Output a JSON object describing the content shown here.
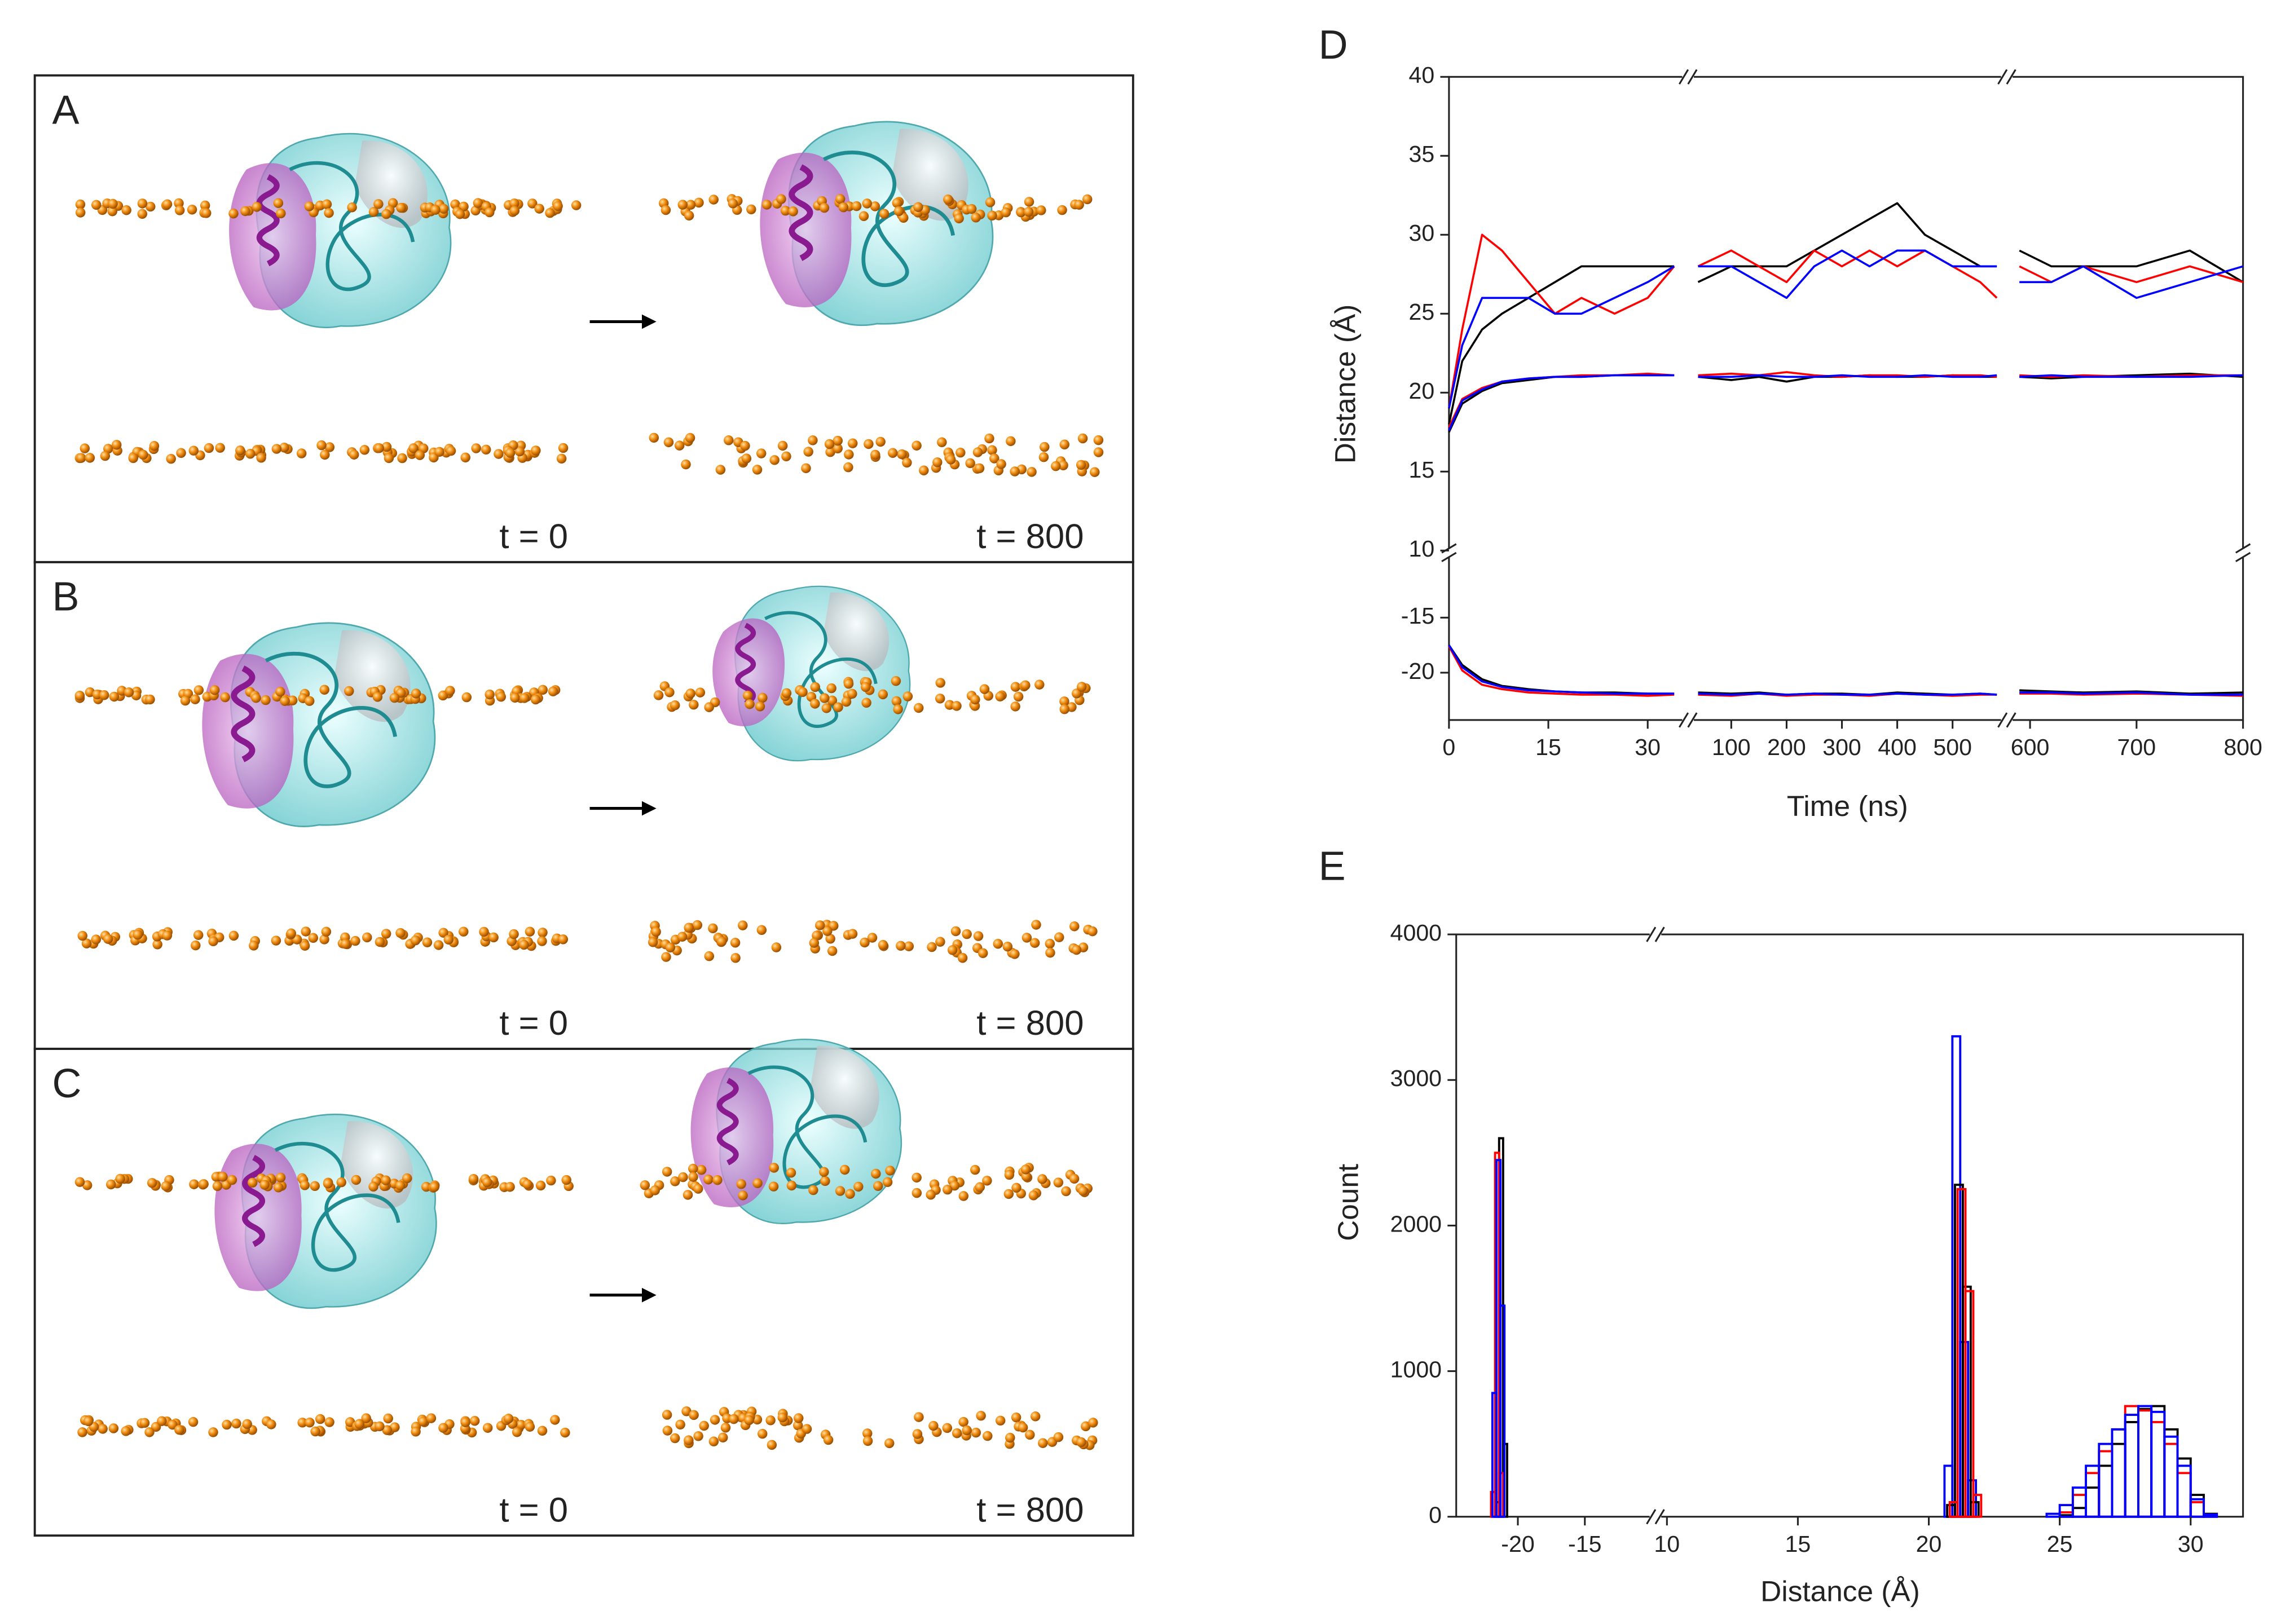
{
  "panels": [
    {
      "label": "A",
      "left_time": "t = 0",
      "right_time": "t = 800"
    },
    {
      "label": "B",
      "left_time": "t = 0",
      "right_time": "t = 800"
    },
    {
      "label": "C",
      "left_time": "t = 0",
      "right_time": "t = 800"
    }
  ],
  "chart_data": [
    {
      "type": "line",
      "panel_label": "D",
      "xlabel": "Time (ns)",
      "ylabel": "Distance (Å)",
      "xsegments": [
        [
          0,
          35
        ],
        [
          35,
          585
        ],
        [
          585,
          800
        ]
      ],
      "ysegments": [
        [
          -24.3,
          -9.3
        ],
        [
          10,
          40
        ]
      ],
      "xticks": [
        0,
        15,
        30,
        100,
        200,
        300,
        400,
        500,
        600,
        700,
        800
      ],
      "yticks": [
        -20,
        -15,
        10,
        15,
        20,
        25,
        30,
        35,
        40
      ],
      "x": [
        0,
        2,
        5,
        8,
        12,
        16,
        20,
        25,
        30,
        34,
        35,
        40,
        100,
        150,
        200,
        250,
        300,
        350,
        400,
        450,
        500,
        550,
        580,
        585,
        590,
        620,
        650,
        700,
        750,
        800
      ],
      "series": [
        {
          "color": "#000000",
          "values": [
            18,
            22,
            24,
            25,
            26,
            27,
            28,
            28,
            28,
            28,
            null,
            27,
            28,
            28,
            28,
            29,
            30,
            31,
            32,
            30,
            29,
            28,
            28,
            null,
            29,
            28,
            28,
            28,
            29,
            27
          ]
        },
        {
          "color": "#ff0000",
          "values": [
            19,
            24,
            30,
            29,
            27,
            25,
            26,
            25,
            26,
            28,
            null,
            28,
            29,
            28,
            27,
            29,
            28,
            29,
            28,
            29,
            28,
            27,
            26,
            null,
            28,
            27,
            28,
            27,
            28,
            27
          ]
        },
        {
          "color": "#0000ff",
          "values": [
            19,
            23,
            26,
            26,
            26,
            25,
            25,
            26,
            27,
            28,
            null,
            28,
            28,
            27,
            26,
            28,
            29,
            28,
            29,
            29,
            28,
            28,
            28,
            null,
            27,
            27,
            28,
            26,
            27,
            28
          ]
        },
        {
          "color": "#000000",
          "values": [
            17.5,
            19.3,
            20.1,
            20.6,
            20.8,
            21,
            21,
            21.1,
            21.1,
            21.1,
            null,
            21,
            20.8,
            21,
            20.7,
            21,
            21,
            21.1,
            21,
            21,
            21.1,
            21,
            21,
            null,
            21,
            20.9,
            21,
            21.1,
            21.2,
            21
          ]
        },
        {
          "color": "#ff0000",
          "values": [
            17.8,
            19.6,
            20.3,
            20.7,
            20.9,
            21,
            21.1,
            21.1,
            21.2,
            21.1,
            null,
            21.1,
            21.2,
            21.1,
            21.3,
            21.1,
            21,
            21.1,
            21.1,
            21,
            21.1,
            21.1,
            21,
            null,
            21.1,
            21,
            21.1,
            21,
            21.1,
            21.1
          ]
        },
        {
          "color": "#0000ff",
          "values": [
            17.6,
            19.5,
            20.2,
            20.7,
            20.9,
            21,
            21,
            21.1,
            21.1,
            21.1,
            null,
            21,
            21,
            21.1,
            21,
            21,
            21.1,
            21,
            21,
            21.1,
            21,
            21,
            21.1,
            null,
            21,
            21.1,
            21,
            21,
            21,
            21.1
          ]
        },
        {
          "color": "#000000",
          "values": [
            -17.5,
            -19.3,
            -20.6,
            -21.2,
            -21.5,
            -21.7,
            -21.8,
            -21.8,
            -21.9,
            -21.9,
            null,
            -21.8,
            -21.9,
            -21.8,
            -22,
            -21.9,
            -21.9,
            -22,
            -21.8,
            -21.9,
            -22,
            -21.9,
            -22,
            null,
            -21.6,
            -21.7,
            -21.8,
            -21.7,
            -21.9,
            -21.8
          ]
        },
        {
          "color": "#ff0000",
          "values": [
            -17.6,
            -19.8,
            -21.1,
            -21.5,
            -21.8,
            -21.9,
            -22,
            -22,
            -22.1,
            -22,
            null,
            -22,
            -22.1,
            -21.9,
            -22.1,
            -22,
            -22,
            -22.1,
            -21.9,
            -22,
            -22.1,
            -22,
            -22,
            null,
            -21.9,
            -21.9,
            -22,
            -21.9,
            -22,
            -22.1
          ]
        },
        {
          "color": "#0000ff",
          "values": [
            -17.5,
            -19.5,
            -20.8,
            -21.3,
            -21.6,
            -21.7,
            -21.8,
            -21.9,
            -21.9,
            -21.9,
            null,
            -21.9,
            -22,
            -21.9,
            -22,
            -21.9,
            -22,
            -22,
            -21.9,
            -22,
            -22,
            -21.9,
            -22,
            null,
            -21.8,
            -21.8,
            -21.9,
            -21.8,
            -22,
            -22
          ]
        }
      ]
    },
    {
      "type": "histogram",
      "panel_label": "E",
      "xlabel": "Distance (Å)",
      "ylabel": "Count",
      "xsegments": [
        [
          -24.6,
          -10
        ],
        [
          9.7,
          32
        ]
      ],
      "ylim": [
        0,
        4000
      ],
      "xticks": [
        -20,
        -15,
        10,
        15,
        20,
        25,
        30
      ],
      "yticks": [
        0,
        1000,
        2000,
        3000,
        4000
      ],
      "series": [
        {
          "color": "#000000",
          "bins": [
            -21.7,
            -21.4,
            -21.1,
            -20.8
          ],
          "counts": [
            100,
            2600,
            500
          ]
        },
        {
          "color": "#ff0000",
          "bins": [
            -22.0,
            -21.7,
            -21.4,
            -21.1
          ],
          "counts": [
            170,
            2500,
            300
          ]
        },
        {
          "color": "#0000ff",
          "bins": [
            -21.9,
            -21.6,
            -21.3,
            -21.0
          ],
          "counts": [
            850,
            2450,
            1450
          ]
        },
        {
          "color": "#0000ff",
          "bins": [
            20.6,
            20.9,
            21.2,
            21.5,
            21.8
          ],
          "counts": [
            350,
            3300,
            1200,
            250
          ]
        },
        {
          "color": "#000000",
          "bins": [
            20.7,
            21.0,
            21.3,
            21.6,
            21.9
          ],
          "counts": [
            80,
            2280,
            1580,
            100
          ]
        },
        {
          "color": "#ff0000",
          "bins": [
            20.8,
            21.1,
            21.4,
            21.7,
            22.0
          ],
          "counts": [
            100,
            2250,
            1550,
            150
          ]
        },
        {
          "color": "#000000",
          "bins": [
            24.5,
            25,
            25.5,
            26,
            26.5,
            27,
            27.5,
            28,
            28.5,
            29,
            29.5,
            30,
            30.5,
            31
          ],
          "counts": [
            0,
            10,
            60,
            200,
            350,
            500,
            650,
            740,
            760,
            600,
            400,
            150,
            20
          ]
        },
        {
          "color": "#ff0000",
          "bins": [
            24.5,
            25,
            25.5,
            26,
            26.5,
            27,
            27.5,
            28,
            28.5,
            29,
            29.5,
            30,
            30.5,
            31
          ],
          "counts": [
            0,
            30,
            150,
            300,
            450,
            600,
            760,
            730,
            650,
            500,
            300,
            100,
            10
          ]
        },
        {
          "color": "#0000ff",
          "bins": [
            24.5,
            25,
            25.5,
            26,
            26.5,
            27,
            27.5,
            28,
            28.5,
            29,
            29.5,
            30,
            30.5,
            31
          ],
          "counts": [
            20,
            80,
            200,
            350,
            500,
            600,
            700,
            760,
            720,
            550,
            350,
            120,
            15
          ]
        }
      ]
    }
  ]
}
